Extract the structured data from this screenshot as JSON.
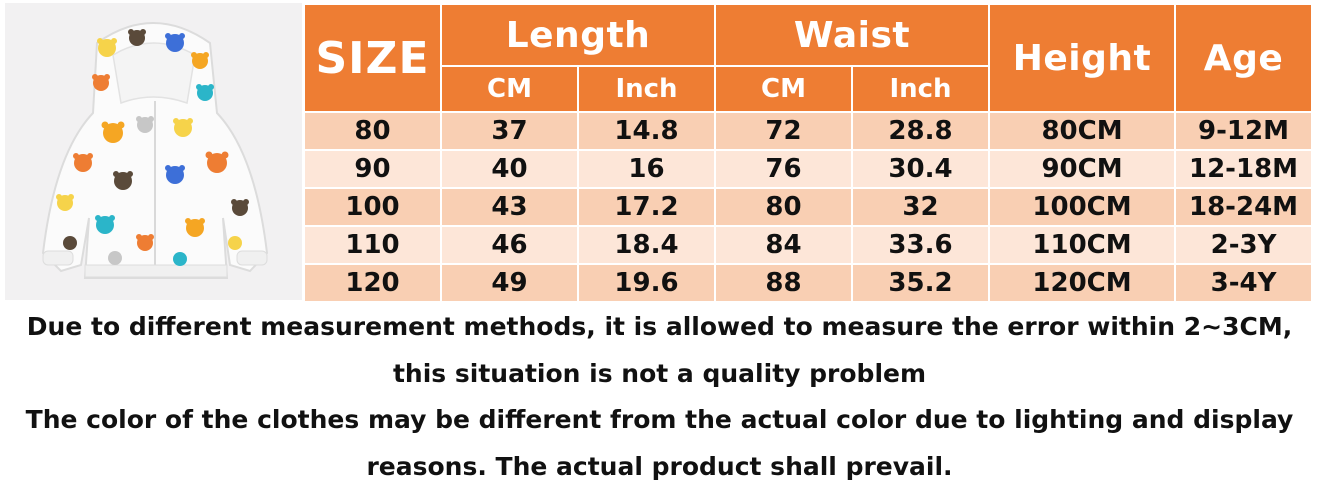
{
  "photo": {
    "alt": "kids hooded jacket with cartoon bear print",
    "colors": {
      "background": "#f2f1f2",
      "jacket": "#fbfbfb",
      "bear_palette": [
        "#f5a623",
        "#ee7d33",
        "#f6d34a",
        "#3d6fd8",
        "#2bb5c9",
        "#5a4a3a",
        "#c7c7c7"
      ]
    }
  },
  "table": {
    "colors": {
      "header": "#ee7d33",
      "row_odd": "#f9cfb3",
      "row_even": "#fde6d8"
    },
    "headers": {
      "size": "SIZE",
      "length": "Length",
      "waist": "Waist",
      "height": "Height",
      "age": "Age",
      "length_cm": "CM",
      "length_inch": "Inch",
      "waist_cm": "CM",
      "waist_inch": "Inch"
    },
    "rows": [
      {
        "size": "80",
        "length_cm": "37",
        "length_inch": "14.8",
        "waist_cm": "72",
        "waist_inch": "28.8",
        "height": "80CM",
        "age": "9-12M"
      },
      {
        "size": "90",
        "length_cm": "40",
        "length_inch": "16",
        "waist_cm": "76",
        "waist_inch": "30.4",
        "height": "90CM",
        "age": "12-18M"
      },
      {
        "size": "100",
        "length_cm": "43",
        "length_inch": "17.2",
        "waist_cm": "80",
        "waist_inch": "32",
        "height": "100CM",
        "age": "18-24M"
      },
      {
        "size": "110",
        "length_cm": "46",
        "length_inch": "18.4",
        "waist_cm": "84",
        "waist_inch": "33.6",
        "height": "110CM",
        "age": "2-3Y"
      },
      {
        "size": "120",
        "length_cm": "49",
        "length_inch": "19.6",
        "waist_cm": "88",
        "waist_inch": "35.2",
        "height": "120CM",
        "age": "3-4Y"
      }
    ]
  },
  "notes": {
    "line1": "Due to different measurement methods, it is allowed to measure the error within 2~3CM,",
    "line2": "this situation is not a quality problem",
    "line3": "The color of the clothes may be different from the actual color due to lighting and display",
    "line4": "reasons. The actual product shall prevail."
  }
}
